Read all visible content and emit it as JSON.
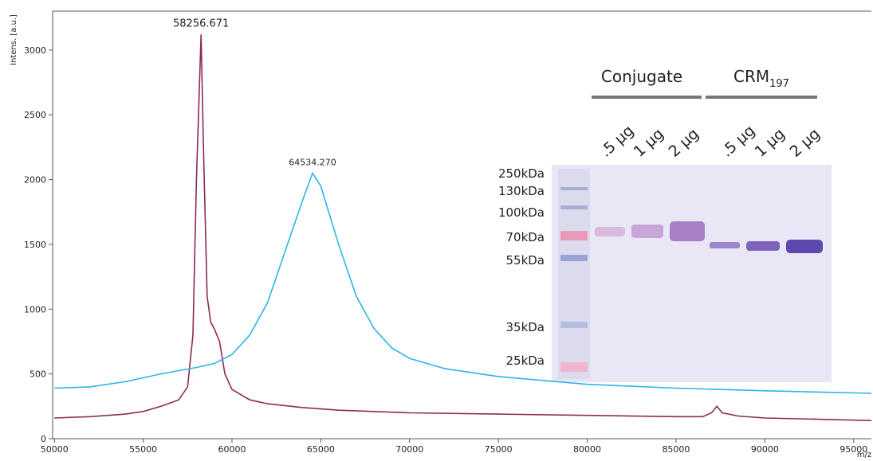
{
  "chart_data": {
    "type": "line",
    "y_label": "Intens. [a.u.]",
    "x_label": "m/z",
    "xlim": [
      49900,
      96000
    ],
    "ylim": [
      0,
      3300
    ],
    "xticks": [
      50000,
      55000,
      60000,
      65000,
      70000,
      75000,
      80000,
      85000,
      90000,
      95000
    ],
    "yticks": [
      0,
      500,
      1000,
      1500,
      2000,
      2500,
      3000
    ],
    "grid": false,
    "annotations": [
      "58256.671",
      "64534.270"
    ],
    "series": [
      {
        "color": "#8b2a5a",
        "x": [
          50000,
          52000,
          54000,
          55000,
          56000,
          57000,
          57500,
          57800,
          58000,
          58256.671,
          58400,
          58600,
          58800,
          59000,
          59300,
          59600,
          60000,
          61000,
          62000,
          64000,
          66000,
          70000,
          75000,
          80000,
          85000,
          86500,
          87000,
          87300,
          87600,
          88500,
          90000,
          93000,
          96000
        ],
        "values": [
          160,
          170,
          190,
          210,
          250,
          300,
          400,
          800,
          2000,
          3120,
          2200,
          1100,
          900,
          850,
          750,
          500,
          380,
          300,
          270,
          240,
          220,
          200,
          190,
          180,
          170,
          170,
          200,
          250,
          200,
          175,
          160,
          150,
          140
        ]
      },
      {
        "color": "#2bb5e8",
        "x": [
          50000,
          52000,
          54000,
          56000,
          58000,
          59000,
          60000,
          61000,
          62000,
          63000,
          64000,
          64534.27,
          65000,
          66000,
          67000,
          68000,
          69000,
          70000,
          72000,
          75000,
          80000,
          85000,
          90000,
          96000
        ],
        "values": [
          390,
          400,
          440,
          500,
          550,
          580,
          650,
          800,
          1050,
          1450,
          1850,
          2050,
          1950,
          1500,
          1100,
          850,
          700,
          620,
          540,
          480,
          420,
          390,
          370,
          350
        ]
      }
    ]
  },
  "inset": {
    "groups": [
      {
        "text": "Conjugate"
      },
      {
        "text": "CRM",
        "subscript": "197"
      }
    ],
    "lanes": [
      ".5 µg",
      "1 µg",
      "2 µg",
      ".5 µg",
      "1 µg",
      "2 µg"
    ],
    "markers": [
      "250kDa",
      "130kDa",
      "100kDa",
      "70kDa",
      "55kDa",
      "35kDa",
      "25kDa"
    ]
  }
}
